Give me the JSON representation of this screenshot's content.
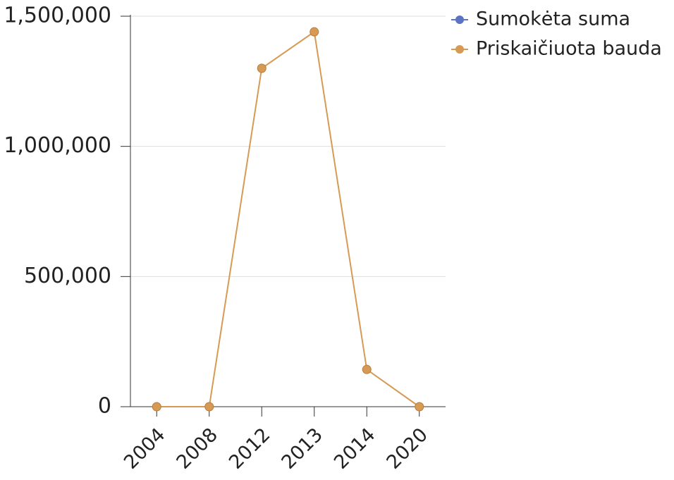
{
  "chart_data": {
    "type": "line",
    "categories": [
      "2004",
      "2008",
      "2012",
      "2013",
      "2014",
      "2020"
    ],
    "series": [
      {
        "name": "Sumokėta suma",
        "color": "#5b73c4",
        "values": [
          null,
          null,
          null,
          null,
          null,
          null
        ]
      },
      {
        "name": "Priskaičiuota bauda",
        "color": "#d69a55",
        "values": [
          0,
          0,
          1300000,
          1440000,
          143000,
          0
        ]
      }
    ],
    "ylim": [
      0,
      1500000
    ],
    "yticks": [
      {
        "value": 0,
        "label": "0"
      },
      {
        "value": 500000,
        "label": "500,000"
      },
      {
        "value": 1000000,
        "label": "1,000,000"
      },
      {
        "value": 1500000,
        "label": "1,500,000"
      }
    ],
    "grid": true,
    "legend": "top-right"
  }
}
